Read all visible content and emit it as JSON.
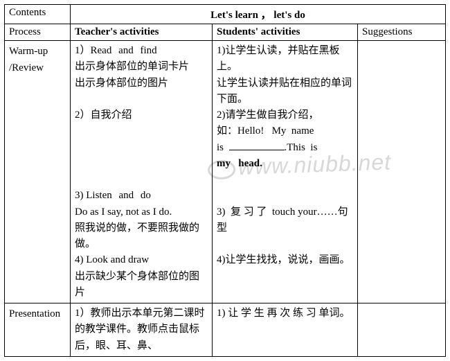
{
  "watermark": "www.niubb.net",
  "table": {
    "header": {
      "contents_label": "Contents",
      "lesson_title": "Let's learn ，  let's do"
    },
    "subheader": {
      "process": "Process",
      "teacher": "Teacher's activities",
      "student": "Students' activities",
      "suggest": "Suggestions"
    },
    "rows": [
      {
        "process_html": "Warm-up<br>/Review",
        "teacher_html": "1）<span class=\"spaced-en\">Read and find</span><br>出示身体部位的单词卡片<br>出示身体部位的图片<br><br>2）自我介绍<br><br><br><br><br>3) <span class=\"spaced-en\">Listen and do</span><br>Do as I say, not as I do.<br>照我说的做，不要照我做的做。<br>4) Look and draw<br>出示缺少某个身体部位的图片",
        "student_html": "1)让学生认读，并贴在黑板上。<br>让学生认读并贴在相应的单词下面。<br>2)请学生做自我介绍，<br>如：Hello!&nbsp;&nbsp;&nbsp;My&nbsp;&nbsp;name<br>is&nbsp;&nbsp;<span class=\"fill-blank\"></span>.This&nbsp;&nbsp;is<br><b>my&nbsp;&nbsp;&nbsp;head.</b><br><br><br>3)&nbsp;&nbsp;复 习 了&nbsp;&nbsp;touch your……句型<br><br>4)让学生找找，说说，画画。<br><br>",
        "suggest_html": ""
      },
      {
        "process_html": "Presentation",
        "teacher_html": "1）教师出示本单元第二课时的教学课件。教师点击鼠标后，眼、耳、鼻、",
        "student_html": "1) 让 学 生 再 次 练 习 单词。",
        "suggest_html": ""
      }
    ]
  }
}
